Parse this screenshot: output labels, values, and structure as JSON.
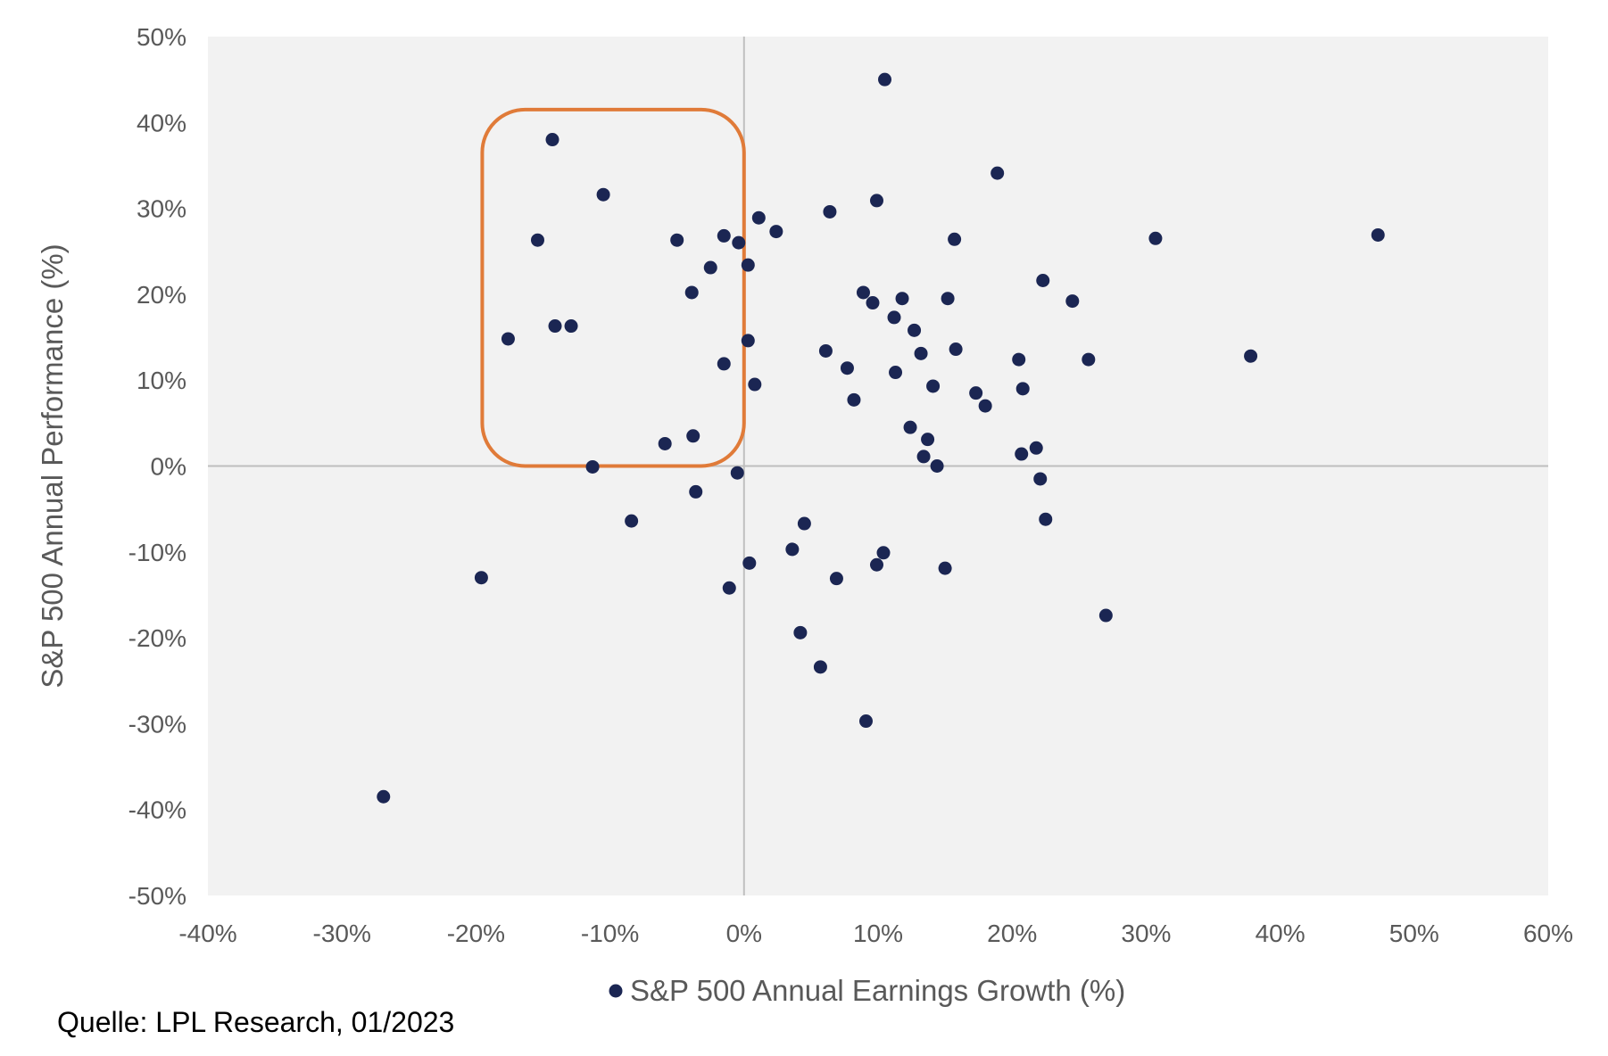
{
  "chart_data": {
    "type": "scatter",
    "title": "",
    "xlabel": "S&P 500 Annual Earnings Growth (%)",
    "ylabel": "S&P 500 Annual Performance (%)",
    "xlim": [
      -40,
      60
    ],
    "ylim": [
      -50,
      50
    ],
    "x_ticks": [
      "-40%",
      "-30%",
      "-20%",
      "-10%",
      "0%",
      "10%",
      "20%",
      "30%",
      "40%",
      "50%",
      "60%"
    ],
    "y_ticks": [
      "50%",
      "40%",
      "30%",
      "20%",
      "10%",
      "0%",
      "-10%",
      "-20%",
      "-30%",
      "-40%",
      "-50%"
    ],
    "x_tick_values": [
      -40,
      -30,
      -20,
      -10,
      0,
      10,
      20,
      30,
      40,
      50,
      60
    ],
    "y_tick_values": [
      50,
      40,
      30,
      20,
      10,
      0,
      -10,
      -20,
      -30,
      -40,
      -50
    ],
    "legend_position": "bottom",
    "grid": false,
    "series": [
      {
        "name": "S&P 500 Annual Earnings Growth (%)",
        "color": "#1b2653",
        "points": [
          [
            -26.9,
            -38.5
          ],
          [
            -19.6,
            -13.0
          ],
          [
            -17.6,
            14.8
          ],
          [
            -15.4,
            26.3
          ],
          [
            -14.3,
            38.0
          ],
          [
            -14.1,
            16.3
          ],
          [
            -12.9,
            16.3
          ],
          [
            -11.3,
            -0.1
          ],
          [
            -10.5,
            31.6
          ],
          [
            -8.4,
            -6.4
          ],
          [
            -5.9,
            2.6
          ],
          [
            -5.0,
            26.3
          ],
          [
            -3.9,
            20.2
          ],
          [
            -3.8,
            3.5
          ],
          [
            -3.6,
            -3.0
          ],
          [
            -2.5,
            23.1
          ],
          [
            -1.5,
            26.8
          ],
          [
            -1.5,
            11.9
          ],
          [
            -1.1,
            -14.2
          ],
          [
            -0.4,
            26.0
          ],
          [
            -0.5,
            -0.8
          ],
          [
            0.3,
            23.4
          ],
          [
            0.3,
            14.6
          ],
          [
            0.4,
            -11.3
          ],
          [
            0.8,
            9.5
          ],
          [
            1.1,
            28.9
          ],
          [
            2.4,
            27.3
          ],
          [
            3.6,
            -9.7
          ],
          [
            4.2,
            -19.4
          ],
          [
            4.5,
            -6.7
          ],
          [
            5.7,
            -23.4
          ],
          [
            6.1,
            13.4
          ],
          [
            6.4,
            29.6
          ],
          [
            6.9,
            -13.1
          ],
          [
            7.7,
            11.4
          ],
          [
            8.2,
            7.7
          ],
          [
            8.9,
            20.2
          ],
          [
            9.1,
            -29.7
          ],
          [
            9.6,
            19.0
          ],
          [
            9.9,
            -11.5
          ],
          [
            9.9,
            30.9
          ],
          [
            10.4,
            -10.1
          ],
          [
            10.5,
            45.0
          ],
          [
            11.2,
            17.3
          ],
          [
            11.3,
            10.9
          ],
          [
            11.8,
            19.5
          ],
          [
            12.4,
            4.5
          ],
          [
            12.7,
            15.8
          ],
          [
            13.2,
            13.1
          ],
          [
            13.4,
            1.1
          ],
          [
            13.7,
            3.1
          ],
          [
            14.1,
            9.3
          ],
          [
            14.4,
            0.0
          ],
          [
            15.0,
            -11.9
          ],
          [
            15.2,
            19.5
          ],
          [
            15.7,
            26.4
          ],
          [
            15.8,
            13.6
          ],
          [
            17.3,
            8.5
          ],
          [
            18.0,
            7.0
          ],
          [
            18.9,
            34.1
          ],
          [
            20.5,
            12.4
          ],
          [
            20.7,
            1.4
          ],
          [
            20.8,
            9.0
          ],
          [
            21.8,
            2.1
          ],
          [
            22.1,
            -1.5
          ],
          [
            22.3,
            21.6
          ],
          [
            22.5,
            -6.2
          ],
          [
            24.5,
            19.2
          ],
          [
            25.7,
            12.4
          ],
          [
            27.0,
            -17.4
          ],
          [
            30.7,
            26.5
          ],
          [
            37.8,
            12.8
          ],
          [
            47.3,
            26.9
          ]
        ]
      }
    ],
    "annotations": [
      {
        "type": "highlight-box",
        "color": "#e07b39",
        "x_range": [
          -19,
          0
        ],
        "y_range": [
          0,
          41.5
        ]
      }
    ]
  },
  "source": {
    "text": "Quelle: LPL Research, 01/2023"
  },
  "colors": {
    "plot_background": "#f2f2f2",
    "marker": "#1b2653",
    "zero_lines": "#bfbfbf",
    "highlight": "#e07b39",
    "text": "#595959"
  }
}
